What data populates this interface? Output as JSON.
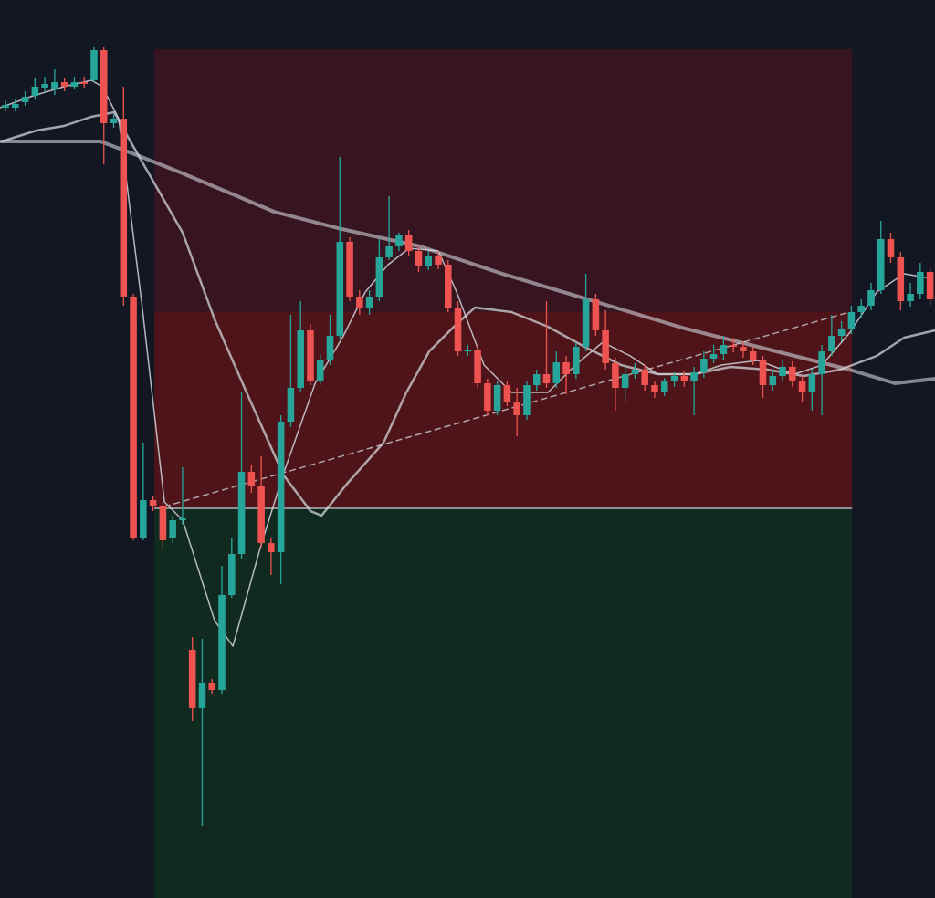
{
  "chart_data": {
    "type": "candlestick",
    "background": "#131722",
    "up_color": "#26a69a",
    "down_color": "#ef5350",
    "xlim": [
      -0.56,
      94.5
    ],
    "ylim": [
      0,
      984
    ],
    "open": [
      866,
      866,
      872,
      879,
      888,
      886,
      894,
      889,
      894,
      896,
      929,
      849,
      854,
      659,
      394,
      436,
      429,
      394,
      414,
      272,
      208,
      236,
      228,
      332,
      377,
      467,
      452,
      389,
      379,
      522,
      559,
      622,
      567,
      589,
      616,
      719,
      659,
      646,
      659,
      702,
      714,
      726,
      709,
      692,
      704,
      694,
      646,
      599,
      601,
      564,
      534,
      562,
      544,
      529,
      562,
      574,
      564,
      587,
      574,
      604,
      656,
      622,
      586,
      559,
      574,
      579,
      562,
      554,
      566,
      572,
      566,
      576,
      591,
      596,
      606,
      604,
      599,
      589,
      562,
      572,
      582,
      566,
      554,
      574,
      599,
      616,
      624,
      642,
      649,
      666,
      722,
      702,
      654,
      662,
      686
    ],
    "high": [
      874,
      876,
      884,
      899,
      900,
      908,
      898,
      900,
      900,
      932,
      932,
      859,
      889,
      662,
      499,
      440,
      434,
      419,
      472,
      286,
      284,
      240,
      364,
      394,
      554,
      474,
      484,
      394,
      529,
      639,
      654,
      629,
      596,
      639,
      812,
      724,
      666,
      666,
      722,
      769,
      729,
      732,
      714,
      709,
      709,
      699,
      654,
      606,
      606,
      569,
      566,
      566,
      559,
      566,
      579,
      654,
      599,
      594,
      609,
      684,
      662,
      644,
      592,
      584,
      586,
      584,
      566,
      570,
      576,
      578,
      582,
      599,
      606,
      616,
      614,
      609,
      604,
      594,
      579,
      589,
      588,
      572,
      580,
      606,
      639,
      632,
      649,
      656,
      674,
      742,
      729,
      708,
      674,
      696,
      692
    ],
    "low": [
      862,
      862,
      868,
      876,
      884,
      880,
      884,
      886,
      888,
      894,
      804,
      844,
      649,
      392,
      392,
      424,
      381,
      389,
      409,
      194,
      79,
      224,
      224,
      329,
      372,
      444,
      384,
      354,
      344,
      516,
      554,
      562,
      562,
      584,
      612,
      654,
      639,
      639,
      654,
      699,
      709,
      704,
      686,
      688,
      689,
      642,
      594,
      594,
      559,
      529,
      529,
      539,
      506,
      524,
      556,
      559,
      559,
      552,
      569,
      599,
      616,
      579,
      534,
      544,
      569,
      556,
      548,
      550,
      560,
      560,
      529,
      570,
      586,
      590,
      598,
      592,
      584,
      548,
      556,
      566,
      560,
      544,
      534,
      529,
      594,
      610,
      618,
      636,
      644,
      662,
      696,
      644,
      648,
      656,
      649
    ],
    "close": [
      869,
      870,
      878,
      889,
      892,
      894,
      889,
      894,
      892,
      929,
      849,
      854,
      659,
      394,
      436,
      429,
      392,
      414,
      416,
      208,
      236,
      228,
      332,
      377,
      467,
      452,
      389,
      379,
      522,
      559,
      622,
      567,
      589,
      616,
      719,
      659,
      646,
      659,
      702,
      714,
      726,
      709,
      692,
      704,
      694,
      646,
      599,
      601,
      564,
      534,
      562,
      544,
      529,
      562,
      574,
      564,
      587,
      574,
      604,
      656,
      622,
      586,
      559,
      574,
      579,
      562,
      554,
      566,
      572,
      566,
      576,
      591,
      596,
      606,
      604,
      599,
      589,
      562,
      572,
      582,
      566,
      554,
      574,
      599,
      616,
      624,
      642,
      649,
      666,
      722,
      702,
      654,
      662,
      686,
      656
    ],
    "lines": [
      {
        "color": "#d1d4dc",
        "width": 1.5,
        "opacity": 0.85,
        "x": [
          -0.56,
          2.79,
          5.94,
          8.73,
          9.84,
          11.51,
          13.83,
          16.16,
          18.01,
          21.26,
          23.12,
          25.91,
          28.23,
          31.48,
          34.26,
          36.58,
          38.9,
          41.04,
          44.01,
          45.87,
          48.65,
          51.44,
          55.15,
          57.94,
          60.72,
          63.51,
          66.3,
          70.01,
          72.8,
          76.51,
          80.22,
          83.01,
          85.8,
          88.58,
          91.36,
          94.15
        ],
        "values": [
          866,
          879,
          889,
          896,
          889,
          854,
          654,
          434,
          414,
          304,
          276,
          384,
          464,
          564,
          614,
          664,
          694,
          712,
          709,
          664,
          584,
          554,
          554,
          584,
          609,
          594,
          574,
          574,
          584,
          589,
          574,
          584,
          619,
          664,
          684,
          679
        ]
      },
      {
        "color": "#d1d4dc",
        "width": 2.5,
        "opacity": 0.75,
        "x": [
          -0.37,
          3.16,
          5.94,
          8.73,
          11.05,
          12.44,
          18.01,
          21.26,
          24.51,
          28.23,
          31.01,
          32.13,
          34.73,
          38.44,
          40.76,
          43.08,
          45.87,
          47.73,
          51.44,
          55.15,
          58.87,
          62.58,
          66.3,
          70.01,
          73.72,
          77.44,
          81.15,
          84.87,
          88.58,
          91.36,
          94.52
        ],
        "values": [
          829,
          841,
          846,
          856,
          861,
          834,
          729,
          634,
          554,
          464,
          424,
          419,
          454,
          499,
          554,
          599,
          629,
          647,
          642,
          626,
          604,
          584,
          574,
          574,
          582,
          579,
          572,
          579,
          594,
          614,
          622
        ]
      },
      {
        "color": "#d1d4dc",
        "width": 4,
        "opacity": 0.6,
        "x": [
          -0.56,
          9.66,
          13.37,
          18.01,
          23.58,
          27.3,
          33.8,
          42.15,
          50.51,
          59.8,
          69.08,
          78.37,
          85.8,
          90.44,
          94.52
        ],
        "values": [
          829,
          829,
          814,
          794,
          769,
          752,
          734,
          714,
          684,
          654,
          624,
          599,
          579,
          564,
          569
        ]
      }
    ],
    "trendline": {
      "color": "#d1d4dc",
      "x": [
        16.16,
        85.8
      ],
      "values": [
        429,
        642
      ]
    },
    "position": {
      "x": [
        15.13,
        86.07
      ],
      "stop": 930,
      "risk_zone": [
        427,
        642
      ],
      "entry": 427,
      "target": 0,
      "stop_color": "#361520",
      "risk_color": "#4e1419",
      "target_color": "#112a20",
      "entry_color": "#b2b5be"
    }
  }
}
